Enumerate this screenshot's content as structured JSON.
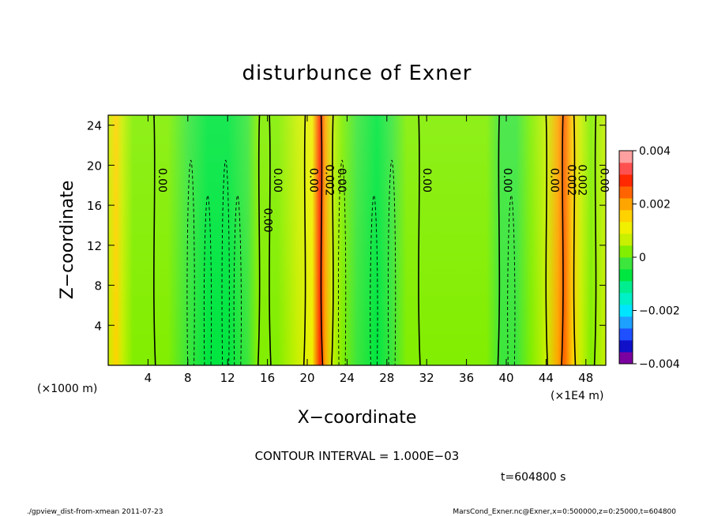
{
  "chart_data": {
    "type": "heatmap",
    "title": "disturbunce of Exner",
    "xlabel": "X−coordinate",
    "ylabel": "Z−coordinate",
    "x_unit_label": "(×1000 m)",
    "x_scale_label": "(×1E4 m)",
    "xlim": [
      0,
      50
    ],
    "ylim": [
      0,
      25
    ],
    "x_ticks": [
      4,
      8,
      12,
      16,
      20,
      24,
      28,
      32,
      36,
      40,
      44,
      48
    ],
    "y_ticks": [
      4,
      8,
      12,
      16,
      20,
      24
    ],
    "colorbar": {
      "range": [
        -0.004,
        0.004
      ],
      "tick_labels": [
        "0.004",
        "0.002",
        "0",
        "−0.002",
        "−0.004"
      ],
      "tick_values": [
        0.004,
        0.002,
        0,
        -0.002,
        -0.004
      ],
      "colors": [
        "#7b00a0",
        "#1010c8",
        "#1e50ff",
        "#1ea0ff",
        "#00e5ff",
        "#00f0c8",
        "#00ee90",
        "#00e640",
        "#3ce63c",
        "#82ee00",
        "#c8f000",
        "#f0f000",
        "#ffd200",
        "#ffa500",
        "#ff6400",
        "#ff2800",
        "#ff5050",
        "#ffa0a0"
      ]
    },
    "band_values_x1e4m": [
      {
        "x": 0,
        "v": 0.0006
      },
      {
        "x": 0.8,
        "v": 0.0014
      },
      {
        "x": 1.4,
        "v": 0.0007
      },
      {
        "x": 2.5,
        "v": 0.0003
      },
      {
        "x": 4,
        "v": 0.0002
      },
      {
        "x": 6,
        "v": 0.0002
      },
      {
        "x": 8,
        "v": -0.0003
      },
      {
        "x": 10,
        "v": -0.0008
      },
      {
        "x": 12,
        "v": -0.0007
      },
      {
        "x": 14,
        "v": -0.0002
      },
      {
        "x": 15,
        "v": 0.0002
      },
      {
        "x": 17,
        "v": 0.0004
      },
      {
        "x": 19,
        "v": 0.0006
      },
      {
        "x": 20.5,
        "v": 0.0012
      },
      {
        "x": 21.3,
        "v": 0.003
      },
      {
        "x": 21.8,
        "v": 0.0022
      },
      {
        "x": 22.5,
        "v": 0.0005
      },
      {
        "x": 23.5,
        "v": 0.0001
      },
      {
        "x": 25,
        "v": -0.0002
      },
      {
        "x": 27,
        "v": -0.0006
      },
      {
        "x": 28.5,
        "v": -0.0004
      },
      {
        "x": 30,
        "v": 0
      },
      {
        "x": 32,
        "v": 0.0002
      },
      {
        "x": 34,
        "v": 0.0004
      },
      {
        "x": 36,
        "v": 0.0003
      },
      {
        "x": 38,
        "v": 0.0002
      },
      {
        "x": 39.5,
        "v": -0.0001
      },
      {
        "x": 41,
        "v": -0.0001
      },
      {
        "x": 42.5,
        "v": 0.0002
      },
      {
        "x": 44,
        "v": 0.0008
      },
      {
        "x": 45.2,
        "v": 0.0018
      },
      {
        "x": 45.8,
        "v": 0.0026
      },
      {
        "x": 46.7,
        "v": 0.0016
      },
      {
        "x": 47.5,
        "v": 0.0008
      },
      {
        "x": 48.5,
        "v": 0.0004
      },
      {
        "x": 50,
        "v": 0.0005
      }
    ],
    "contours": [
      {
        "x": 4.6,
        "label": "0.00",
        "style": "solid"
      },
      {
        "x": 15.2,
        "label": "0.00",
        "style": "solid"
      },
      {
        "x": 16.2,
        "label": "0.00",
        "style": "solid"
      },
      {
        "x": 19.8,
        "label": "0.00",
        "style": "solid"
      },
      {
        "x": 21.4,
        "label": "0.002",
        "style": "solid"
      },
      {
        "x": 22.6,
        "label": "0.00",
        "style": "solid"
      },
      {
        "x": 31.2,
        "label": "0.00",
        "style": "solid"
      },
      {
        "x": 39.3,
        "label": "0.00",
        "style": "solid"
      },
      {
        "x": 44.0,
        "label": "0.00",
        "style": "solid"
      },
      {
        "x": 45.7,
        "label": "0.002",
        "style": "solid"
      },
      {
        "x": 46.8,
        "label": "0.002",
        "style": "solid"
      },
      {
        "x": 49.0,
        "label": "0.00",
        "style": "solid"
      }
    ],
    "dashed_contours": [
      {
        "x": 8.3
      },
      {
        "x": 10.0
      },
      {
        "x": 11.8
      },
      {
        "x": 13.0
      },
      {
        "x": 23.5
      },
      {
        "x": 26.7
      },
      {
        "x": 28.5
      },
      {
        "x": 40.5
      }
    ]
  },
  "annotations": {
    "contour_interval": "CONTOUR INTERVAL = 1.000E−03",
    "time": "t=604800 s",
    "footer_left": "./gpview_dist-from-xmean  2011-07-23",
    "footer_right": "MarsCond_Exner.nc@Exner,x=0:500000,z=0:25000,t=604800"
  }
}
